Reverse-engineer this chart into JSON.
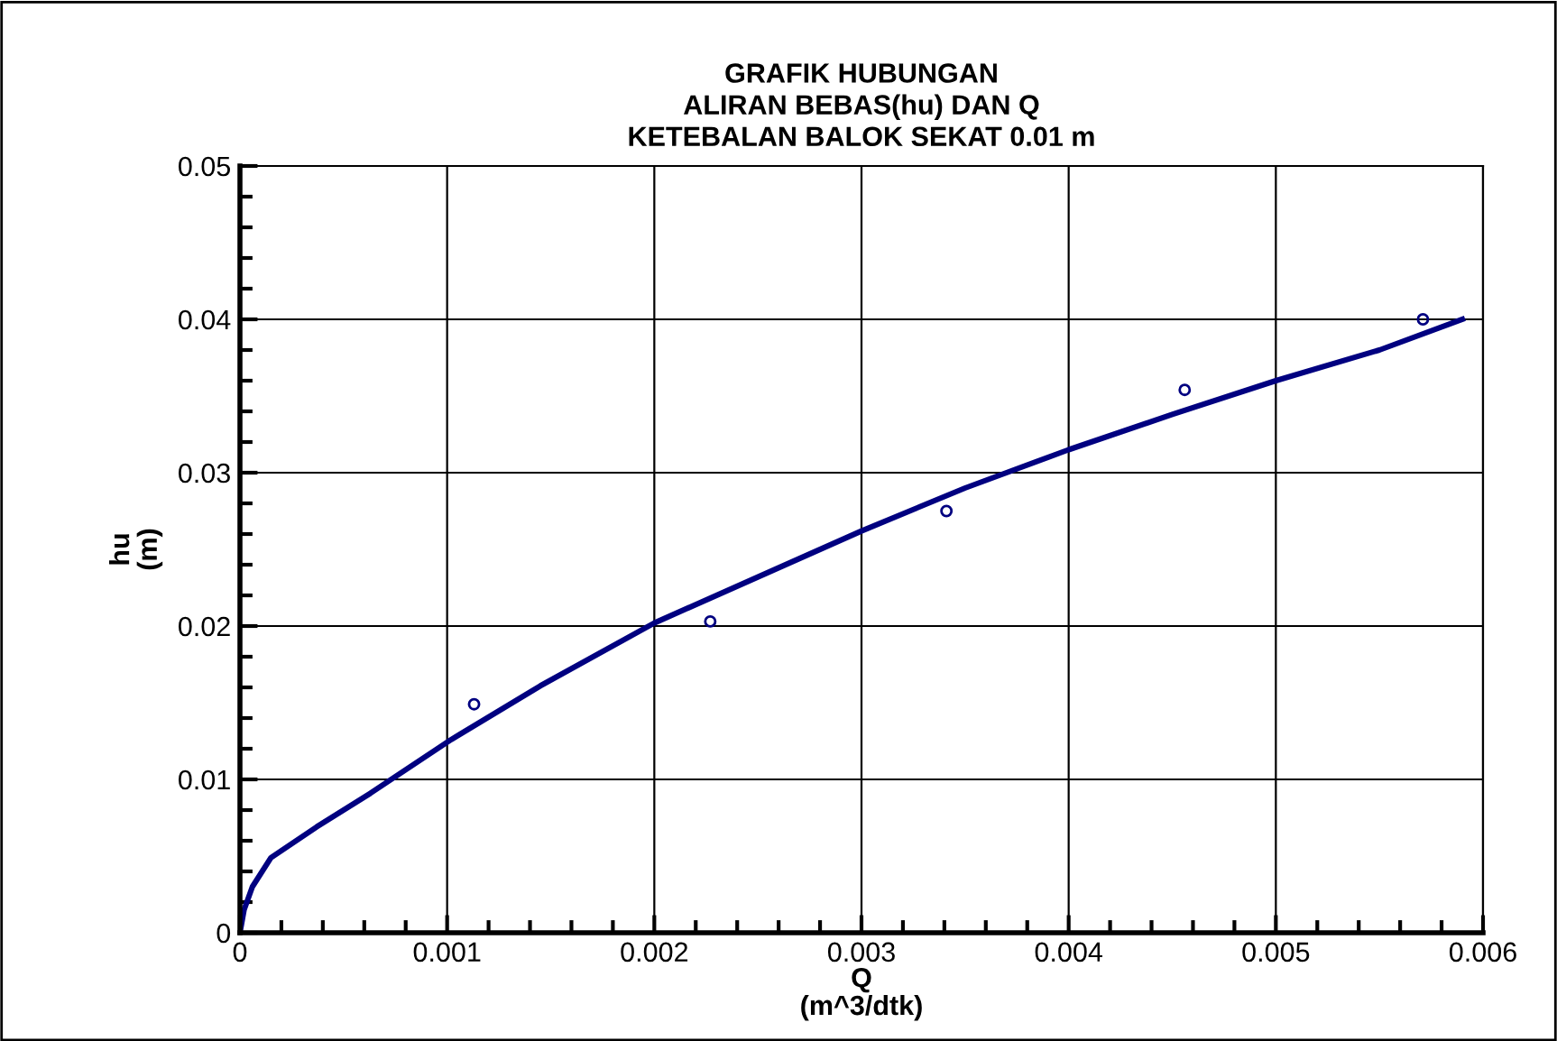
{
  "chart_data": {
    "type": "line",
    "title": "GRAFIK HUBUNGAN\nALIRAN BEBAS(hu) DAN Q\nKETEBALAN BALOK SEKAT 0.01 m",
    "xlabel": "Q\n(m^3/dtk)",
    "ylabel": "hu\n(m)",
    "series": [
      {
        "type": "scatter",
        "color": "#000080",
        "marker": "circle",
        "x": [
          0.00113,
          0.00227,
          0.00341,
          0.00456,
          0.00571
        ],
        "values": [
          0.0149,
          0.0203,
          0.0275,
          0.0354,
          0.04
        ]
      },
      {
        "color": "#000080",
        "marker": "none",
        "line_style": "solid",
        "x": [
          0,
          2e-05,
          6e-05,
          0.00015,
          0.00037,
          0.00063,
          0.00102,
          0.00145,
          0.002,
          0.0025,
          0.003,
          0.0035,
          0.004,
          0.0045,
          0.005,
          0.0055,
          0.0059
        ],
        "values": [
          0,
          0.0015,
          0.003,
          0.0049,
          0.0069,
          0.0091,
          0.0126,
          0.0161,
          0.0202,
          0.0232,
          0.0262,
          0.029,
          0.0315,
          0.0338,
          0.036,
          0.038,
          0.04
        ]
      }
    ],
    "xlim": [
      0,
      0.006
    ],
    "ylim": [
      0,
      0.05
    ],
    "xticks": [
      0,
      0.001,
      0.002,
      0.003,
      0.004,
      0.005,
      0.006
    ],
    "yticks": [
      0,
      0.01,
      0.02,
      0.03,
      0.04,
      0.05
    ],
    "grid": true,
    "legend": false
  }
}
